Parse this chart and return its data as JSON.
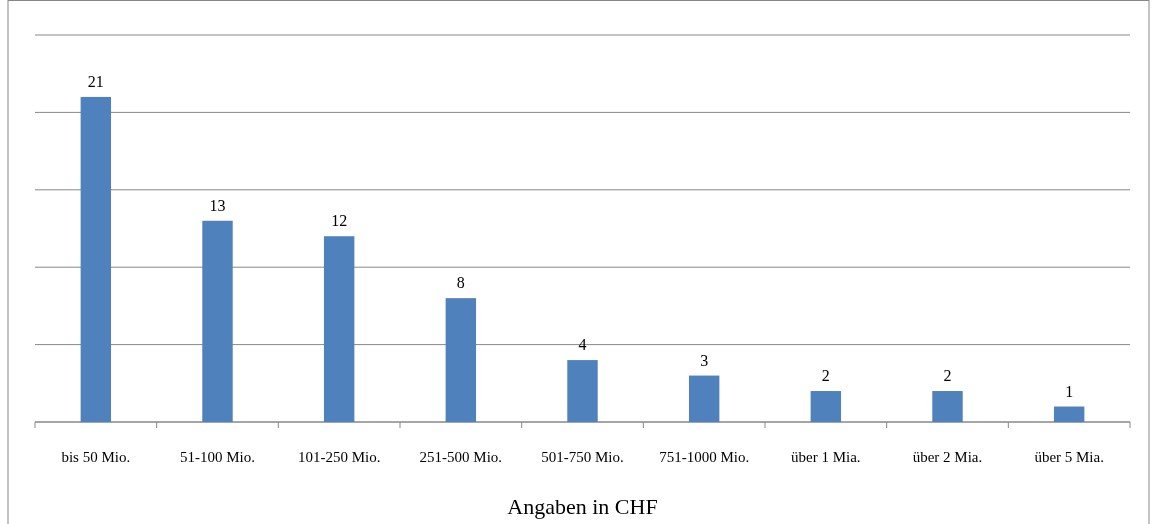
{
  "chart_data": {
    "type": "bar",
    "xlabel": "Angaben in CHF",
    "categories": [
      "bis 50 Mio.",
      "51-100 Mio.",
      "101-250 Mio.",
      "251-500 Mio.",
      "501-750 Mio.",
      "751-1000 Mio.",
      "über 1 Mia.",
      "über 2 Mia.",
      "über 5 Mia."
    ],
    "values": [
      21,
      13,
      12,
      8,
      4,
      3,
      2,
      2,
      1
    ],
    "color": "#4f81bd",
    "ylim": [
      0,
      25
    ],
    "yticks": [
      {
        "value": 0,
        "label": null
      },
      {
        "value": 5,
        "label": null
      },
      {
        "value": 10,
        "label": null
      },
      {
        "value": 15,
        "label": null
      },
      {
        "value": 20,
        "label": null
      },
      {
        "value": 25,
        "label": null
      }
    ],
    "grid": "y",
    "tick_labels": "x",
    "data_labels": true
  }
}
